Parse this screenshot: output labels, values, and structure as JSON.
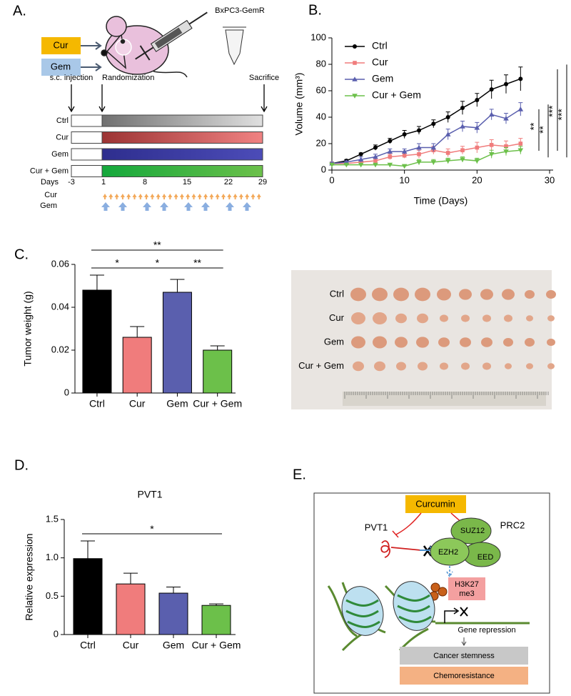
{
  "panels": {
    "a": {
      "label": "A.",
      "treatments": [
        "Cur",
        "Gem"
      ],
      "cell_line": "BxPC3-GemR",
      "events": [
        "s.c. injection",
        "Randomization",
        "Sacrifice"
      ],
      "groups": [
        "Ctrl",
        "Cur",
        "Gem",
        "Cur + Gem"
      ],
      "days_label": "Days",
      "days": [
        -3,
        1,
        8,
        15,
        22,
        29
      ],
      "schedule": [
        "Cur",
        "Gem"
      ]
    },
    "c_photo": {
      "rows": [
        "Ctrl",
        "Cur",
        "Gem",
        "Cur + Gem"
      ]
    },
    "e": {
      "label": "E.",
      "drug": "Curcumin",
      "lncrna": "PVT1",
      "complex": "PRC2",
      "subunits": [
        "SUZ12",
        "EZH2",
        "EED"
      ],
      "mark": [
        "H3K27",
        "me3"
      ],
      "effect": "Gene repression",
      "outcomes": [
        "Cancer stemness",
        "Chemoresistance"
      ]
    }
  },
  "chart_data": [
    {
      "label": "B.",
      "type": "line",
      "xlabel": "Time (Days)",
      "ylabel": "Volume (mm³)",
      "x": [
        0,
        2,
        4,
        6,
        8,
        10,
        12,
        14,
        16,
        18,
        20,
        22,
        24,
        26
      ],
      "xlim": [
        0,
        30
      ],
      "xticks": [
        0,
        10,
        20,
        30
      ],
      "ylim": [
        0,
        100
      ],
      "yticks": [
        0,
        20,
        40,
        60,
        80,
        100
      ],
      "legend": "upper left",
      "series": [
        {
          "name": "Ctrl",
          "color": "#000000",
          "marker": "circle",
          "values": [
            5,
            7,
            12,
            17,
            22,
            27,
            30,
            35,
            40,
            47,
            53,
            61,
            65,
            69
          ],
          "errors": [
            1,
            1,
            1,
            2,
            2,
            3,
            3,
            3,
            4,
            5,
            5,
            7,
            7,
            9
          ]
        },
        {
          "name": "Cur",
          "color": "#f07c7c",
          "marker": "square",
          "values": [
            5,
            5,
            6,
            7,
            10,
            11,
            12,
            15,
            13,
            15,
            17,
            19,
            18,
            20
          ],
          "errors": [
            1,
            1,
            1,
            2,
            2,
            2,
            3,
            3,
            3,
            3,
            4,
            4,
            4,
            4
          ]
        },
        {
          "name": "Gem",
          "color": "#5a5fae",
          "marker": "triangle",
          "values": [
            5,
            6,
            8,
            10,
            14,
            14,
            17,
            17,
            27,
            33,
            32,
            42,
            39,
            46
          ],
          "errors": [
            1,
            1,
            2,
            2,
            2,
            2,
            3,
            3,
            4,
            4,
            4,
            4,
            4,
            5
          ]
        },
        {
          "name": "Cur + Gem",
          "color": "#6cc04a",
          "marker": "triangle-down",
          "values": [
            4,
            4,
            4,
            4,
            4,
            3,
            6,
            6,
            7,
            8,
            7,
            12,
            14,
            15
          ],
          "errors": [
            1,
            1,
            1,
            1,
            1,
            1,
            2,
            2,
            2,
            2,
            2,
            3,
            3,
            3
          ]
        }
      ],
      "significance": [
        {
          "label": "**",
          "series": [
            2,
            1
          ]
        },
        {
          "label": "**",
          "series": [
            2,
            3
          ]
        },
        {
          "label": "***",
          "series": [
            0,
            1
          ]
        },
        {
          "label": "***",
          "series": [
            0,
            3
          ]
        }
      ]
    },
    {
      "label": "C.",
      "type": "bar",
      "ylabel": "Tumor weight (g)",
      "categories": [
        "Ctrl",
        "Cur",
        "Gem",
        "Cur + Gem"
      ],
      "values": [
        0.048,
        0.026,
        0.047,
        0.02
      ],
      "errors": [
        0.007,
        0.005,
        0.006,
        0.002
      ],
      "colors": [
        "#000000",
        "#f07c7c",
        "#5a5fae",
        "#6cc04a"
      ],
      "ylim": [
        0,
        0.06
      ],
      "yticks": [
        0,
        0.02,
        0.04,
        0.06
      ],
      "significance": [
        {
          "label": "**",
          "between": [
            0,
            3
          ]
        },
        {
          "label": "*",
          "between": [
            0,
            1
          ]
        },
        {
          "label": "*",
          "between": [
            1,
            2
          ]
        },
        {
          "label": "**",
          "between": [
            2,
            3
          ]
        }
      ]
    },
    {
      "label": "D.",
      "type": "bar",
      "title": "PVT1",
      "ylabel": "Relative expression",
      "categories": [
        "Ctrl",
        "Cur",
        "Gem",
        "Cur + Gem"
      ],
      "values": [
        0.99,
        0.66,
        0.54,
        0.38
      ],
      "errors": [
        0.23,
        0.14,
        0.08,
        0.02
      ],
      "colors": [
        "#000000",
        "#f07c7c",
        "#5a5fae",
        "#6cc04a"
      ],
      "ylim": [
        0,
        1.5
      ],
      "yticks": [
        0,
        0.5,
        {
          "value": 1,
          "label": "1.0"
        },
        1.5
      ],
      "significance": [
        {
          "label": "*",
          "between": [
            0,
            3
          ]
        }
      ]
    }
  ]
}
